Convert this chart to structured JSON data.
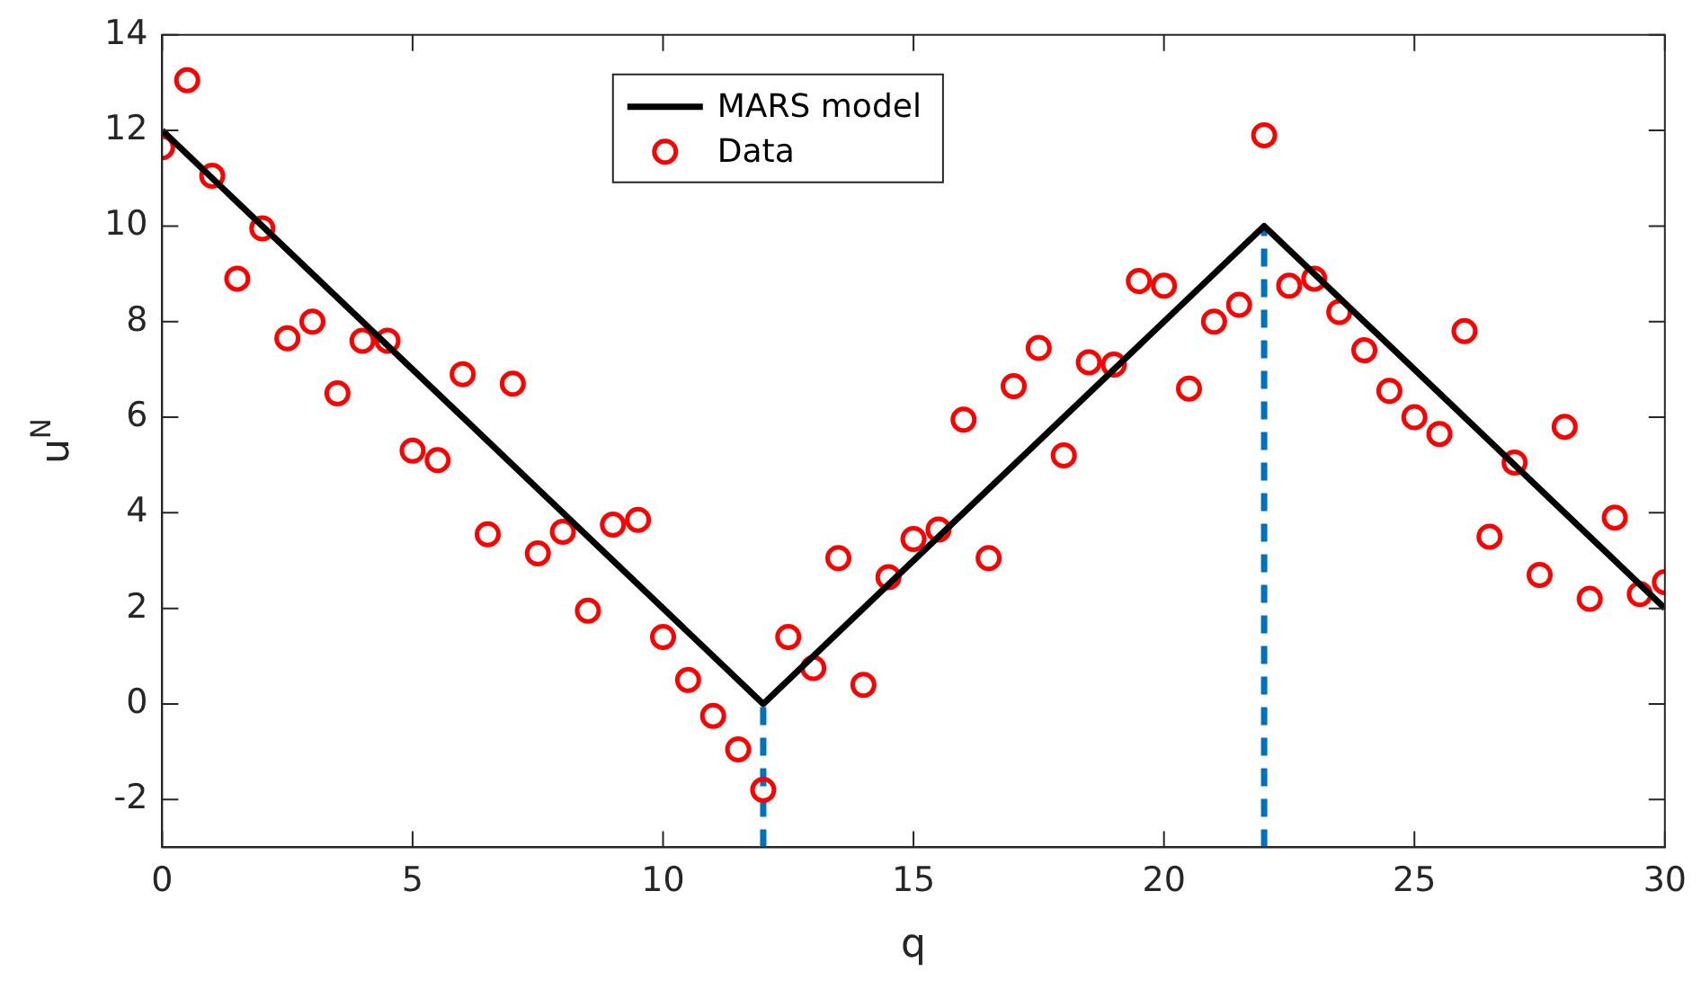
{
  "chart_data": {
    "type": "scatter",
    "xlabel": "q",
    "ylabel": "u$^{N}$",
    "xlim": [
      0,
      30
    ],
    "xticks": [
      0,
      5,
      10,
      15,
      20,
      25,
      30
    ],
    "ylim": [
      -3,
      14
    ],
    "yticks": [
      -2,
      0,
      2,
      4,
      6,
      8,
      10,
      12,
      14
    ],
    "grid": false,
    "legend": "top",
    "marker": "circle",
    "series": [
      {
        "name": "MARS model",
        "type": "line",
        "color": "#000000",
        "marker": "none",
        "line_style": "solid",
        "x": [
          0,
          12,
          22,
          30
        ],
        "values": [
          12,
          0,
          10,
          2
        ]
      },
      {
        "name": "Data",
        "color": "#ff0000",
        "x": [
          0,
          0.5,
          1,
          1.5,
          2,
          2.5,
          3,
          3.5,
          4,
          4.5,
          5,
          5.5,
          6,
          6.5,
          7,
          7.5,
          8,
          8.5,
          9,
          9.5,
          10,
          10.5,
          11,
          11.5,
          12,
          12.5,
          13,
          13.5,
          14,
          14.5,
          15,
          15.5,
          16,
          16.5,
          17,
          17.5,
          18,
          18.5,
          19,
          19.5,
          20,
          20.5,
          21,
          21.5,
          22,
          22.5,
          23,
          23.5,
          24,
          24.5,
          25,
          25.5,
          26,
          26.5,
          27,
          27.5,
          28,
          28.5,
          29,
          29.5,
          30
        ],
        "values": [
          11.65,
          13.05,
          11.05,
          8.9,
          9.95,
          7.65,
          8.0,
          6.5,
          7.6,
          7.6,
          5.3,
          5.1,
          6.9,
          3.55,
          6.7,
          3.15,
          3.6,
          1.95,
          3.75,
          3.85,
          1.4,
          0.5,
          -0.25,
          -0.95,
          -1.8,
          1.4,
          0.75,
          3.05,
          0.4,
          2.65,
          3.45,
          3.65,
          5.95,
          3.05,
          6.65,
          7.45,
          5.2,
          7.15,
          7.1,
          8.85,
          8.75,
          6.6,
          8.0,
          8.35,
          11.9,
          8.75,
          8.9,
          8.2,
          7.4,
          6.55,
          6.0,
          5.65,
          7.8,
          3.5,
          5.05,
          2.7,
          5.8,
          2.2,
          3.9,
          2.3,
          2.55
        ]
      }
    ],
    "ref_lines": [
      {
        "axis": "x",
        "value": 12,
        "color": "#0072bd",
        "line_style": "dashed"
      },
      {
        "axis": "x",
        "value": 22,
        "color": "#0072bd",
        "line_style": "dashed"
      }
    ]
  }
}
